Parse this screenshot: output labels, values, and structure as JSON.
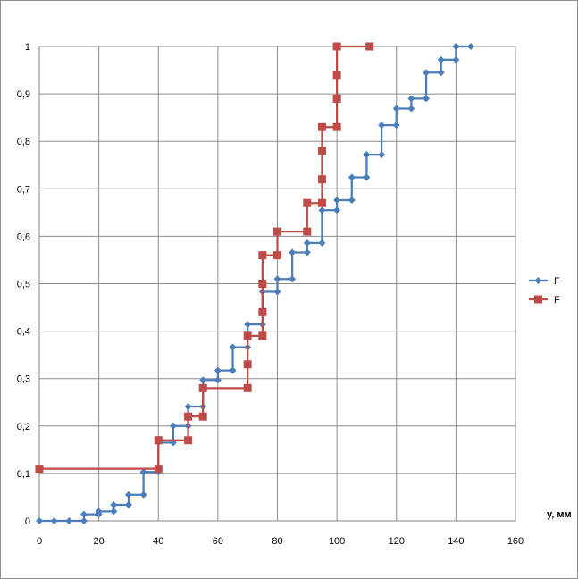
{
  "chart_data": {
    "type": "line",
    "title": "",
    "xlabel": "y, мм",
    "ylabel": "",
    "xlim": [
      0,
      160
    ],
    "ylim": [
      0,
      1
    ],
    "x_ticks": [
      "0",
      "20",
      "40",
      "60",
      "80",
      "100",
      "120",
      "140",
      "160"
    ],
    "y_ticks": [
      "0",
      "0,1",
      "0,2",
      "0,3",
      "0,4",
      "0,5",
      "0,6",
      "0,7",
      "0,8",
      "0,9",
      "1"
    ],
    "grid": true,
    "legend_position": "right",
    "series": [
      {
        "name": "F",
        "color": "#4a7ebb",
        "marker": "diamond",
        "points": [
          [
            0,
            0
          ],
          [
            5,
            0
          ],
          [
            10,
            0
          ],
          [
            15,
            0
          ],
          [
            15,
            0.014
          ],
          [
            20,
            0.014
          ],
          [
            20,
            0.02
          ],
          [
            25,
            0.02
          ],
          [
            25,
            0.034
          ],
          [
            30,
            0.034
          ],
          [
            30,
            0.055
          ],
          [
            35,
            0.055
          ],
          [
            35,
            0.103
          ],
          [
            40,
            0.103
          ],
          [
            40,
            0.165
          ],
          [
            45,
            0.165
          ],
          [
            45,
            0.2
          ],
          [
            50,
            0.2
          ],
          [
            50,
            0.241
          ],
          [
            55,
            0.241
          ],
          [
            55,
            0.297
          ],
          [
            60,
            0.297
          ],
          [
            60,
            0.317
          ],
          [
            65,
            0.317
          ],
          [
            65,
            0.366
          ],
          [
            70,
            0.366
          ],
          [
            70,
            0.414
          ],
          [
            75,
            0.414
          ],
          [
            75,
            0.483
          ],
          [
            80,
            0.483
          ],
          [
            80,
            0.51
          ],
          [
            85,
            0.51
          ],
          [
            85,
            0.566
          ],
          [
            90,
            0.566
          ],
          [
            90,
            0.586
          ],
          [
            95,
            0.586
          ],
          [
            95,
            0.655
          ],
          [
            100,
            0.655
          ],
          [
            100,
            0.676
          ],
          [
            105,
            0.676
          ],
          [
            105,
            0.724
          ],
          [
            110,
            0.724
          ],
          [
            110,
            0.772
          ],
          [
            115,
            0.772
          ],
          [
            115,
            0.834
          ],
          [
            120,
            0.834
          ],
          [
            120,
            0.869
          ],
          [
            125,
            0.869
          ],
          [
            125,
            0.89
          ],
          [
            130,
            0.89
          ],
          [
            130,
            0.945
          ],
          [
            135,
            0.945
          ],
          [
            135,
            0.972
          ],
          [
            140,
            0.972
          ],
          [
            140,
            1
          ],
          [
            145,
            1
          ]
        ]
      },
      {
        "name": "F",
        "color": "#be4b48",
        "marker": "square",
        "points": [
          [
            0,
            0.11
          ],
          [
            40,
            0.11
          ],
          [
            40,
            0.17
          ],
          [
            50,
            0.17
          ],
          [
            50,
            0.22
          ],
          [
            55,
            0.22
          ],
          [
            55,
            0.28
          ],
          [
            70,
            0.28
          ],
          [
            70,
            0.33
          ],
          [
            70,
            0.39
          ],
          [
            75,
            0.39
          ],
          [
            75,
            0.44
          ],
          [
            75,
            0.5
          ],
          [
            75,
            0.56
          ],
          [
            80,
            0.56
          ],
          [
            80,
            0.61
          ],
          [
            90,
            0.61
          ],
          [
            90,
            0.67
          ],
          [
            95,
            0.67
          ],
          [
            95,
            0.72
          ],
          [
            95,
            0.78
          ],
          [
            95,
            0.83
          ],
          [
            100,
            0.83
          ],
          [
            100,
            0.89
          ],
          [
            100,
            0.94
          ],
          [
            100,
            1
          ],
          [
            111,
            1
          ]
        ]
      }
    ]
  }
}
